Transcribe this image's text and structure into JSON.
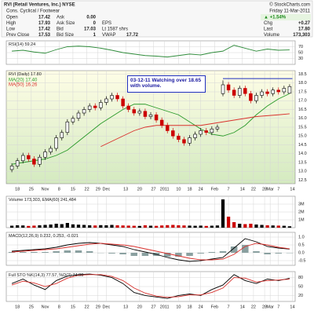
{
  "header": {
    "title": "RVI (Retail Ventures, Inc.) NYSE",
    "credit": "© StockCharts.com",
    "sector": "Cons. Cyclical / Footwear",
    "date": "Friday 11-Mar-2011",
    "change_pct": "▲ +1.54%",
    "quote_rows": [
      [
        "Open",
        "17.42",
        "Ask",
        "0.00"
      ],
      [
        "High",
        "17.93",
        "Ask Size",
        "0",
        "EPS"
      ],
      [
        "Low",
        "17.42",
        "Bid",
        "17.03",
        "Lt 1587 shrs"
      ],
      [
        "Prev Close",
        "17.53",
        "Bid Size",
        "1",
        "VWAP",
        "17.72"
      ]
    ],
    "summary_rows": [
      [
        "Chg",
        "+0.27"
      ],
      [
        "Last",
        "17.80"
      ],
      [
        "Volume",
        "173,303"
      ]
    ]
  },
  "chart_data": [
    {
      "type": "line",
      "title": "RSI(14) 59.24",
      "xlim": [
        -2,
        102
      ],
      "ylim": [
        10,
        90
      ],
      "yticks": [
        30,
        50,
        70
      ],
      "grid": true,
      "series": [
        {
          "color": "#2e8b3a",
          "x": [
            0,
            4,
            8,
            12,
            16,
            20,
            24,
            28,
            32,
            36,
            40,
            44,
            48,
            52,
            56,
            60,
            64,
            68,
            72,
            76,
            80,
            84,
            88,
            92,
            96,
            100
          ],
          "values": [
            55,
            58,
            52,
            48,
            60,
            70,
            72,
            70,
            65,
            58,
            50,
            45,
            40,
            38,
            35,
            40,
            45,
            42,
            50,
            55,
            75,
            65,
            55,
            62,
            58,
            59.24
          ]
        }
      ]
    },
    {
      "type": "candlestick",
      "title": "RVI (Daily) 17.80",
      "xlim": [
        -2,
        102
      ],
      "ylim": [
        12.3,
        18.7
      ],
      "grid": true,
      "yticks": [
        12.5,
        {
          "value": 13,
          "label": "13.0"
        },
        13.5,
        {
          "value": 14,
          "label": "14.0"
        },
        14.5,
        {
          "value": 15,
          "label": "15.0"
        },
        15.5,
        {
          "value": 16,
          "label": "16.0"
        },
        16.5,
        {
          "value": 17,
          "label": "17.0"
        },
        17.5,
        {
          "value": 18,
          "label": "18.0"
        },
        18.5
      ],
      "xticks": [
        {
          "value": 2,
          "label": "18"
        },
        {
          "value": 7,
          "label": "25"
        },
        {
          "value": 12,
          "label": "Nov"
        },
        {
          "value": 17,
          "label": "8"
        },
        {
          "value": 22,
          "label": "15"
        },
        {
          "value": 27,
          "label": "22"
        },
        {
          "value": 31,
          "label": "29"
        },
        {
          "value": 34,
          "label": "Dec"
        },
        {
          "value": 41,
          "label": "13"
        },
        {
          "value": 46,
          "label": "20"
        },
        {
          "value": 51,
          "label": "27"
        },
        {
          "value": 55,
          "label": "2011"
        },
        {
          "value": 60,
          "label": "10"
        },
        {
          "value": 64,
          "label": "18"
        },
        {
          "value": 68,
          "label": "24"
        },
        {
          "value": 73,
          "label": "Feb"
        },
        {
          "value": 78,
          "label": "7"
        },
        {
          "value": 83,
          "label": "14"
        },
        {
          "value": 87,
          "label": "22"
        },
        {
          "value": 91,
          "label": "28"
        },
        {
          "value": 93,
          "label": "Mar"
        },
        {
          "value": 96,
          "label": "7"
        },
        {
          "value": 101,
          "label": "14"
        }
      ],
      "up_color": "#000000",
      "down_color": "#cc0000",
      "x": [
        0,
        2,
        4,
        6,
        8,
        10,
        12,
        14,
        16,
        18,
        20,
        22,
        24,
        26,
        28,
        30,
        32,
        34,
        36,
        38,
        40,
        42,
        44,
        46,
        48,
        50,
        52,
        54,
        56,
        58,
        60,
        62,
        64,
        66,
        68,
        70,
        72,
        74,
        76,
        78,
        80,
        82,
        84,
        86,
        88,
        90,
        92,
        94,
        96,
        98,
        100
      ],
      "open": [
        13.1,
        13.3,
        13.6,
        13.9,
        13.7,
        13.4,
        13.8,
        14.1,
        14.3,
        14.9,
        15.2,
        15.8,
        16.0,
        16.3,
        16.5,
        16.7,
        16.6,
        16.9,
        17.1,
        17.3,
        17.1,
        16.7,
        16.5,
        16.3,
        16.4,
        16.1,
        16.2,
        15.9,
        15.6,
        15.3,
        15.0,
        14.8,
        14.6,
        14.9,
        15.1,
        15.3,
        15.2,
        15.4,
        17.4,
        17.9,
        17.6,
        17.3,
        17.7,
        17.4,
        17.0,
        17.3,
        17.5,
        17.4,
        17.6,
        17.5,
        17.42
      ],
      "high": [
        13.45,
        13.75,
        14.05,
        14.05,
        13.85,
        13.95,
        14.25,
        14.45,
        15.05,
        15.35,
        15.95,
        16.15,
        16.45,
        16.65,
        16.85,
        16.85,
        17.05,
        17.25,
        17.45,
        17.45,
        17.25,
        16.85,
        16.65,
        16.55,
        16.55,
        16.35,
        16.35,
        16.05,
        15.75,
        15.45,
        15.15,
        14.95,
        15.05,
        15.25,
        15.45,
        15.45,
        15.55,
        15.65,
        18.15,
        18.05,
        17.75,
        17.85,
        17.85,
        17.55,
        17.45,
        17.65,
        17.65,
        17.75,
        17.75,
        17.85,
        17.93
      ],
      "low": [
        12.95,
        13.15,
        13.45,
        13.55,
        13.25,
        13.25,
        13.65,
        13.95,
        14.15,
        14.75,
        15.05,
        15.65,
        15.85,
        16.15,
        16.35,
        16.45,
        16.45,
        16.75,
        16.95,
        16.95,
        16.55,
        16.35,
        16.15,
        16.15,
        15.95,
        15.95,
        15.75,
        15.45,
        15.15,
        14.85,
        14.65,
        14.45,
        14.45,
        14.75,
        14.95,
        15.05,
        15.05,
        15.25,
        17.25,
        17.45,
        17.15,
        17.15,
        17.25,
        16.85,
        16.85,
        17.15,
        17.25,
        17.25,
        17.35,
        17.35,
        17.42
      ],
      "close": [
        13.3,
        13.6,
        13.9,
        13.7,
        13.4,
        13.8,
        14.1,
        14.3,
        14.9,
        15.2,
        15.8,
        16.0,
        16.3,
        16.5,
        16.7,
        16.6,
        16.9,
        17.1,
        17.3,
        17.1,
        16.7,
        16.5,
        16.3,
        16.4,
        16.1,
        16.2,
        15.9,
        15.6,
        15.3,
        15.0,
        14.8,
        14.6,
        14.9,
        15.1,
        15.3,
        15.2,
        15.4,
        15.5,
        17.9,
        17.6,
        17.3,
        17.7,
        17.4,
        17.0,
        17.3,
        17.5,
        17.4,
        17.6,
        17.5,
        17.7,
        17.8
      ],
      "series": [
        {
          "name": "MA(20) 17.40",
          "color": "#2a9a2a",
          "x": [
            0,
            4,
            8,
            12,
            16,
            20,
            24,
            28,
            32,
            36,
            40,
            44,
            48,
            52,
            56,
            60,
            64,
            68,
            72,
            76,
            80,
            84,
            88,
            92,
            96,
            100
          ],
          "values": [
            13.4,
            13.5,
            13.6,
            13.7,
            13.9,
            14.2,
            14.7,
            15.2,
            15.7,
            16.1,
            16.5,
            16.8,
            16.8,
            16.6,
            16.4,
            16.2,
            15.8,
            15.4,
            15.1,
            15.0,
            15.2,
            15.6,
            16.2,
            16.7,
            17.1,
            17.4
          ]
        },
        {
          "name": "MA(50) 16.26",
          "color": "#d9302c",
          "x": [
            32,
            36,
            40,
            44,
            48,
            52,
            56,
            60,
            64,
            68,
            72,
            76,
            80,
            84,
            88,
            92,
            96,
            100
          ],
          "values": [
            14.4,
            14.7,
            15.0,
            15.3,
            15.5,
            15.6,
            15.6,
            15.6,
            15.6,
            15.6,
            15.7,
            15.8,
            15.9,
            16.0,
            16.1,
            16.15,
            16.2,
            16.26
          ]
        }
      ],
      "hline": {
        "value": 18.25,
        "x": [
          76,
          101
        ],
        "color": "#2030c0"
      },
      "annotation": "03-12-11 Watching over 18.65 with volume."
    },
    {
      "type": "bar",
      "title": "Volume 173,303, EMA(60) 241,484",
      "xlim": [
        -2,
        102
      ],
      "ylim": [
        0,
        4000000
      ],
      "grid": true,
      "yticks": [
        {
          "value": 1000000,
          "label": "1M"
        },
        {
          "value": 2000000,
          "label": "2M"
        },
        {
          "value": 3000000,
          "label": "3M"
        }
      ],
      "up_color": "#000000",
      "down_color": "#cc0000",
      "x": [
        0,
        2,
        4,
        6,
        8,
        10,
        12,
        14,
        16,
        18,
        20,
        22,
        24,
        26,
        28,
        30,
        32,
        34,
        36,
        38,
        40,
        42,
        44,
        46,
        48,
        50,
        52,
        54,
        56,
        58,
        60,
        62,
        64,
        66,
        68,
        70,
        72,
        74,
        76,
        78,
        80,
        82,
        84,
        86,
        88,
        90,
        92,
        94,
        96,
        98,
        100
      ],
      "values": [
        250000,
        300000,
        280000,
        220000,
        260000,
        300000,
        350000,
        400000,
        500000,
        450000,
        600000,
        420000,
        380000,
        350000,
        300000,
        280000,
        320000,
        300000,
        350000,
        300000,
        280000,
        260000,
        240000,
        220000,
        300000,
        250000,
        230000,
        280000,
        320000,
        350000,
        300000,
        280000,
        260000,
        240000,
        260000,
        220000,
        250000,
        280000,
        3600000,
        1400000,
        700000,
        500000,
        450000,
        500000,
        400000,
        350000,
        300000,
        280000,
        260000,
        240000,
        173303
      ]
    },
    {
      "type": "macd",
      "title": "MACD(12,26,9) 0.232, 0.253, -0.021",
      "xlim": [
        -2,
        102
      ],
      "ylim": [
        -0.8,
        1.3
      ],
      "grid": true,
      "yticks": [
        -0.5,
        {
          "value": 0,
          "label": "0.0"
        },
        0.5,
        {
          "value": 1,
          "label": "1.0"
        }
      ],
      "histogram": {
        "color": "#8aa0a0",
        "x": [
          0,
          4,
          8,
          12,
          16,
          20,
          24,
          28,
          32,
          36,
          40,
          44,
          48,
          52,
          56,
          60,
          64,
          68,
          72,
          76,
          80,
          84,
          88,
          92,
          96,
          100
        ],
        "values": [
          0.05,
          0.05,
          0.05,
          0.05,
          0.1,
          0.15,
          0.15,
          0.1,
          0.0,
          -0.05,
          -0.1,
          -0.2,
          -0.2,
          -0.2,
          -0.25,
          -0.25,
          -0.2,
          -0.05,
          0.05,
          0.1,
          0.4,
          0.5,
          0.1,
          -0.1,
          -0.05,
          -0.021
        ]
      },
      "series": [
        {
          "color": "#000000",
          "x": [
            0,
            4,
            8,
            12,
            16,
            20,
            24,
            28,
            32,
            36,
            40,
            44,
            48,
            52,
            56,
            60,
            64,
            68,
            72,
            76,
            80,
            84,
            88,
            92,
            96,
            100
          ],
          "values": [
            0.1,
            0.15,
            0.2,
            0.25,
            0.35,
            0.5,
            0.6,
            0.65,
            0.6,
            0.5,
            0.4,
            0.2,
            0.05,
            -0.1,
            -0.3,
            -0.45,
            -0.55,
            -0.5,
            -0.4,
            -0.3,
            0.3,
            0.9,
            0.7,
            0.4,
            0.3,
            0.232
          ]
        },
        {
          "color": "#d9302c",
          "x": [
            0,
            4,
            8,
            12,
            16,
            20,
            24,
            28,
            32,
            36,
            40,
            44,
            48,
            52,
            56,
            60,
            64,
            68,
            72,
            76,
            80,
            84,
            88,
            92,
            96,
            100
          ],
          "values": [
            0.05,
            0.1,
            0.15,
            0.2,
            0.25,
            0.35,
            0.45,
            0.55,
            0.6,
            0.55,
            0.5,
            0.4,
            0.25,
            0.1,
            -0.05,
            -0.2,
            -0.35,
            -0.45,
            -0.45,
            -0.4,
            -0.1,
            0.4,
            0.6,
            0.5,
            0.35,
            0.253
          ]
        }
      ]
    },
    {
      "type": "line",
      "title": "Full STO %K(14,3) 77.57, %D(3) 74.88",
      "xlim": [
        -2,
        102
      ],
      "ylim": [
        0,
        100
      ],
      "yticks": [
        20,
        50,
        80
      ],
      "grid": true,
      "xticks": [
        {
          "value": 2,
          "label": "18"
        },
        {
          "value": 7,
          "label": "25"
        },
        {
          "value": 12,
          "label": "Nov"
        },
        {
          "value": 17,
          "label": "8"
        },
        {
          "value": 22,
          "label": "15"
        },
        {
          "value": 27,
          "label": "22"
        },
        {
          "value": 31,
          "label": "29"
        },
        {
          "value": 34,
          "label": "Dec"
        },
        {
          "value": 41,
          "label": "13"
        },
        {
          "value": 46,
          "label": "20"
        },
        {
          "value": 51,
          "label": "27"
        },
        {
          "value": 55,
          "label": "2011"
        },
        {
          "value": 60,
          "label": "10"
        },
        {
          "value": 64,
          "label": "18"
        },
        {
          "value": 68,
          "label": "24"
        },
        {
          "value": 73,
          "label": "Feb"
        },
        {
          "value": 78,
          "label": "7"
        },
        {
          "value": 83,
          "label": "14"
        },
        {
          "value": 87,
          "label": "22"
        },
        {
          "value": 91,
          "label": "28"
        },
        {
          "value": 93,
          "label": "Mar"
        },
        {
          "value": 96,
          "label": "7"
        },
        {
          "value": 101,
          "label": "14"
        }
      ],
      "series": [
        {
          "color": "#000000",
          "x": [
            0,
            4,
            8,
            12,
            16,
            20,
            24,
            28,
            32,
            36,
            40,
            44,
            48,
            52,
            56,
            60,
            64,
            68,
            72,
            76,
            80,
            84,
            88,
            92,
            96,
            100
          ],
          "values": [
            60,
            75,
            55,
            40,
            70,
            85,
            90,
            92,
            88,
            80,
            60,
            30,
            20,
            15,
            10,
            20,
            25,
            20,
            40,
            55,
            90,
            70,
            60,
            75,
            70,
            77.57
          ]
        },
        {
          "color": "#d9302c",
          "x": [
            0,
            4,
            8,
            12,
            16,
            20,
            24,
            28,
            32,
            36,
            40,
            44,
            48,
            52,
            56,
            60,
            64,
            68,
            72,
            76,
            80,
            84,
            88,
            92,
            96,
            100
          ],
          "values": [
            55,
            68,
            62,
            50,
            60,
            78,
            88,
            90,
            90,
            84,
            70,
            45,
            28,
            18,
            14,
            16,
            22,
            22,
            30,
            45,
            80,
            78,
            65,
            70,
            72,
            74.88
          ]
        }
      ]
    }
  ]
}
